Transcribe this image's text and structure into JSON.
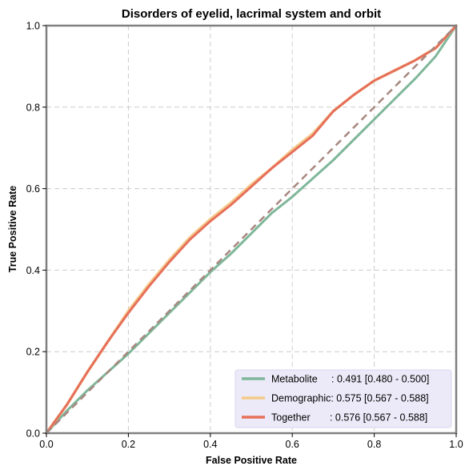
{
  "chart_data": {
    "type": "line",
    "title": "Disorders of eyelid, lacrimal system and orbit",
    "xlabel": "False Positive Rate",
    "ylabel": "True Positive Rate",
    "xlim": [
      0,
      1
    ],
    "ylim": [
      0,
      1
    ],
    "x_ticks": [
      "0.0",
      "0.2",
      "0.4",
      "0.6",
      "0.8",
      "1.0"
    ],
    "y_ticks": [
      "0.0",
      "0.2",
      "0.4",
      "0.6",
      "0.8",
      "1.0"
    ],
    "grid": true,
    "legend_position": "lower-right",
    "diagonal": {
      "x": [
        0,
        1
      ],
      "y": [
        0,
        1
      ],
      "style": "dashed",
      "color": "#a8877f"
    },
    "series": [
      {
        "name": "Metabolite",
        "legend_label": "Metabolite     : 0.491 [0.480 - 0.500]",
        "color": "#7fb79a",
        "x": [
          0,
          0.05,
          0.1,
          0.15,
          0.2,
          0.25,
          0.3,
          0.35,
          0.4,
          0.45,
          0.5,
          0.55,
          0.6,
          0.65,
          0.7,
          0.75,
          0.8,
          0.85,
          0.9,
          0.95,
          1.0
        ],
        "y": [
          0,
          0.055,
          0.105,
          0.15,
          0.195,
          0.245,
          0.295,
          0.345,
          0.395,
          0.44,
          0.49,
          0.54,
          0.58,
          0.625,
          0.67,
          0.72,
          0.77,
          0.82,
          0.87,
          0.925,
          1.0
        ]
      },
      {
        "name": "Demographic",
        "legend_label": "Demographic: 0.575 [0.567 - 0.588]",
        "color": "#f5c98a",
        "x": [
          0,
          0.05,
          0.1,
          0.15,
          0.2,
          0.25,
          0.3,
          0.35,
          0.4,
          0.45,
          0.5,
          0.55,
          0.6,
          0.65,
          0.7,
          0.75,
          0.8,
          0.85,
          0.9,
          0.95,
          1.0
        ],
        "y": [
          0,
          0.07,
          0.15,
          0.225,
          0.3,
          0.365,
          0.425,
          0.48,
          0.525,
          0.565,
          0.61,
          0.65,
          0.695,
          0.735,
          0.79,
          0.83,
          0.865,
          0.89,
          0.915,
          0.945,
          1.0
        ]
      },
      {
        "name": "Together",
        "legend_label": "Together       : 0.576 [0.567 - 0.588]",
        "color": "#e6705a",
        "x": [
          0,
          0.05,
          0.1,
          0.15,
          0.2,
          0.25,
          0.3,
          0.35,
          0.4,
          0.45,
          0.5,
          0.55,
          0.6,
          0.65,
          0.7,
          0.75,
          0.8,
          0.85,
          0.9,
          0.95,
          1.0
        ],
        "y": [
          0,
          0.07,
          0.15,
          0.225,
          0.295,
          0.36,
          0.42,
          0.475,
          0.52,
          0.56,
          0.605,
          0.65,
          0.69,
          0.73,
          0.79,
          0.83,
          0.865,
          0.89,
          0.915,
          0.945,
          1.0
        ]
      }
    ]
  }
}
